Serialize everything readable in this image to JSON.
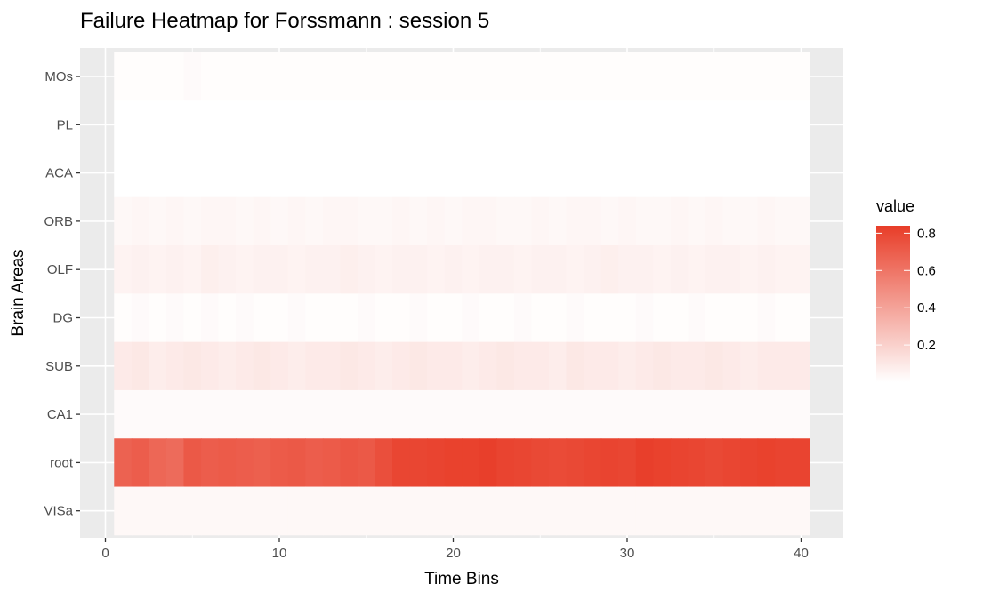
{
  "chart_data": {
    "type": "heatmap",
    "title": "Failure Heatmap for Forssmann : session 5",
    "xlabel": "Time Bins",
    "ylabel": "Brain Areas",
    "x_ticks": [
      "0",
      "10",
      "20",
      "30",
      "40"
    ],
    "x_tick_values": [
      0,
      10,
      20,
      30,
      40
    ],
    "xlim": [
      0,
      40
    ],
    "x_bins": [
      1,
      40
    ],
    "rows": [
      "MOs",
      "PL",
      "ACA",
      "ORB",
      "OLF",
      "DG",
      "SUB",
      "CA1",
      "root",
      "VISa"
    ],
    "row_values": [
      [
        0.01,
        0.01,
        0.01,
        0.01,
        0.02,
        0.01,
        0.01,
        0.01,
        0.01,
        0.01,
        0.01,
        0.01,
        0.01,
        0.01,
        0.01,
        0.01,
        0.01,
        0.01,
        0.01,
        0.01,
        0.01,
        0.01,
        0.01,
        0.01,
        0.01,
        0.01,
        0.01,
        0.01,
        0.01,
        0.01,
        0.01,
        0.01,
        0.01,
        0.01,
        0.01,
        0.01,
        0.01,
        0.01,
        0.01,
        0.01
      ],
      [
        0,
        0,
        0,
        0,
        0,
        0,
        0,
        0,
        0,
        0,
        0,
        0,
        0,
        0,
        0,
        0,
        0,
        0,
        0,
        0,
        0,
        0,
        0,
        0,
        0,
        0,
        0,
        0,
        0,
        0,
        0,
        0,
        0,
        0,
        0,
        0,
        0,
        0,
        0,
        0
      ],
      [
        0,
        0,
        0,
        0,
        0,
        0,
        0,
        0,
        0,
        0,
        0,
        0,
        0,
        0,
        0,
        0,
        0,
        0,
        0,
        0,
        0,
        0,
        0,
        0,
        0,
        0,
        0,
        0,
        0,
        0,
        0,
        0,
        0,
        0,
        0,
        0,
        0,
        0,
        0,
        0
      ],
      [
        0.03,
        0.04,
        0.03,
        0.04,
        0.03,
        0.04,
        0.04,
        0.03,
        0.04,
        0.03,
        0.04,
        0.03,
        0.04,
        0.04,
        0.03,
        0.03,
        0.04,
        0.03,
        0.04,
        0.03,
        0.04,
        0.04,
        0.03,
        0.03,
        0.04,
        0.03,
        0.04,
        0.04,
        0.03,
        0.04,
        0.03,
        0.03,
        0.04,
        0.03,
        0.04,
        0.03,
        0.03,
        0.04,
        0.03,
        0.03
      ],
      [
        0.05,
        0.06,
        0.05,
        0.06,
        0.05,
        0.07,
        0.06,
        0.05,
        0.06,
        0.06,
        0.05,
        0.06,
        0.06,
        0.07,
        0.06,
        0.05,
        0.06,
        0.06,
        0.05,
        0.06,
        0.05,
        0.06,
        0.06,
        0.05,
        0.06,
        0.06,
        0.05,
        0.06,
        0.07,
        0.06,
        0.06,
        0.05,
        0.06,
        0.05,
        0.06,
        0.06,
        0.05,
        0.06,
        0.05,
        0.05
      ],
      [
        0.01,
        0.02,
        0.01,
        0.02,
        0.01,
        0.02,
        0.01,
        0.02,
        0.01,
        0.01,
        0.02,
        0.01,
        0.01,
        0.01,
        0.02,
        0.01,
        0.01,
        0.02,
        0.01,
        0.01,
        0.02,
        0.01,
        0.01,
        0.02,
        0.01,
        0.01,
        0.02,
        0.01,
        0.01,
        0.01,
        0.02,
        0.01,
        0.01,
        0.02,
        0.01,
        0.01,
        0.01,
        0.02,
        0.01,
        0.01
      ],
      [
        0.09,
        0.1,
        0.08,
        0.09,
        0.1,
        0.09,
        0.08,
        0.09,
        0.1,
        0.09,
        0.08,
        0.09,
        0.09,
        0.1,
        0.09,
        0.08,
        0.09,
        0.1,
        0.09,
        0.09,
        0.08,
        0.09,
        0.1,
        0.09,
        0.09,
        0.08,
        0.1,
        0.09,
        0.09,
        0.08,
        0.09,
        0.1,
        0.09,
        0.09,
        0.1,
        0.09,
        0.08,
        0.09,
        0.09,
        0.09
      ],
      [
        0.02,
        0.02,
        0.02,
        0.02,
        0.02,
        0.02,
        0.02,
        0.02,
        0.02,
        0.02,
        0.02,
        0.02,
        0.02,
        0.02,
        0.02,
        0.02,
        0.02,
        0.02,
        0.02,
        0.02,
        0.02,
        0.02,
        0.02,
        0.02,
        0.02,
        0.02,
        0.02,
        0.02,
        0.02,
        0.02,
        0.02,
        0.02,
        0.02,
        0.02,
        0.02,
        0.02,
        0.02,
        0.02,
        0.02,
        0.02
      ],
      [
        0.68,
        0.7,
        0.66,
        0.64,
        0.72,
        0.7,
        0.71,
        0.7,
        0.69,
        0.71,
        0.72,
        0.7,
        0.71,
        0.73,
        0.72,
        0.76,
        0.8,
        0.8,
        0.81,
        0.82,
        0.82,
        0.83,
        0.81,
        0.8,
        0.79,
        0.78,
        0.79,
        0.8,
        0.81,
        0.8,
        0.83,
        0.82,
        0.81,
        0.8,
        0.79,
        0.8,
        0.81,
        0.82,
        0.81,
        0.81
      ],
      [
        0.03,
        0.03,
        0.03,
        0.03,
        0.03,
        0.03,
        0.03,
        0.03,
        0.03,
        0.03,
        0.03,
        0.03,
        0.03,
        0.03,
        0.03,
        0.03,
        0.03,
        0.03,
        0.03,
        0.03,
        0.03,
        0.03,
        0.03,
        0.03,
        0.03,
        0.03,
        0.03,
        0.03,
        0.03,
        0.03,
        0.03,
        0.03,
        0.03,
        0.03,
        0.03,
        0.03,
        0.03,
        0.03,
        0.03,
        0.03
      ]
    ],
    "legend": {
      "title": "value",
      "ticks": [
        "0.2",
        "0.4",
        "0.6",
        "0.8"
      ],
      "tick_values": [
        0.2,
        0.4,
        0.6,
        0.8
      ],
      "range": [
        0,
        0.84
      ],
      "low_color": "#ffffff",
      "high_color": "#e83d28"
    },
    "panel_color": "#ebebeb",
    "grid": true
  }
}
